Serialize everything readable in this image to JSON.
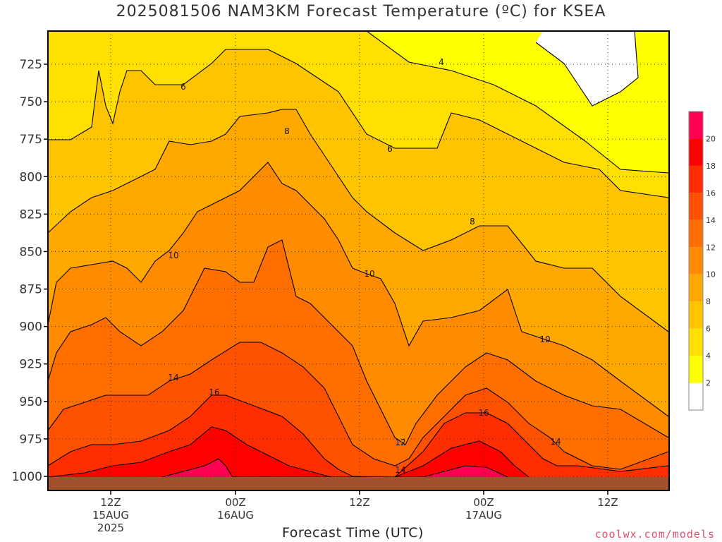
{
  "title": "2025081506 NAM3KM Forecast Temperature (ºC) for KSEA",
  "x_axis_label": "Forecast Time (UTC)",
  "credit": "coolwx.com/models",
  "chart_data": {
    "type": "area",
    "title": "2025081506 NAM3KM Forecast Temperature (ºC) for KSEA",
    "xlabel": "Forecast Time (UTC)",
    "ylabel": "",
    "y_ticks": [
      725,
      750,
      775,
      800,
      825,
      850,
      875,
      900,
      925,
      950,
      975,
      1000
    ],
    "y_axis_inverted": true,
    "x_ticks": [
      {
        "line1": "12Z",
        "line2": "15AUG",
        "line3": "2025"
      },
      {
        "line1": "00Z",
        "line2": "16AUG",
        "line3": ""
      },
      {
        "line1": "12Z",
        "line2": "",
        "line3": ""
      },
      {
        "line1": "00Z",
        "line2": "17AUG",
        "line3": ""
      },
      {
        "line1": "12Z",
        "line2": "",
        "line3": ""
      }
    ],
    "grid": true,
    "colorbar": {
      "levels": [
        2,
        4,
        6,
        8,
        10,
        12,
        14,
        16,
        18,
        20
      ],
      "colors": [
        "#ffffff",
        "#ffff00",
        "#ffe000",
        "#ffc400",
        "#ffa800",
        "#ff8c00",
        "#ff6f00",
        "#ff5200",
        "#ff2e00",
        "#ff0000",
        "#ff0050"
      ]
    },
    "contour_labels": [
      "4",
      "6",
      "6",
      "8",
      "8",
      "10",
      "10",
      "10",
      "12",
      "14",
      "14",
      "14",
      "16",
      "16"
    ],
    "isotherms": [
      {
        "value": 4,
        "p": [
          [
            68,
            44
          ],
          [
            520,
            44
          ],
          [
            580,
            88
          ],
          [
            640,
            100
          ],
          [
            700,
            120
          ],
          [
            760,
            150
          ],
          [
            830,
            200
          ],
          [
            880,
            240
          ],
          [
            948,
            245
          ]
        ]
      },
      {
        "value": 6,
        "p": [
          [
            68,
            198
          ],
          [
            100,
            198
          ],
          [
            130,
            180
          ],
          [
            140,
            100
          ],
          [
            150,
            150
          ],
          [
            160,
            175
          ],
          [
            170,
            130
          ],
          [
            180,
            100
          ],
          [
            200,
            100
          ],
          [
            220,
            120
          ],
          [
            260,
            120
          ],
          [
            300,
            90
          ],
          [
            320,
            70
          ],
          [
            350,
            70
          ],
          [
            380,
            70
          ],
          [
            420,
            90
          ],
          [
            450,
            110
          ],
          [
            480,
            130
          ],
          [
            520,
            190
          ],
          [
            560,
            210
          ],
          [
            600,
            210
          ],
          [
            620,
            210
          ],
          [
            640,
            160
          ],
          [
            680,
            170
          ],
          [
            740,
            200
          ],
          [
            800,
            230
          ],
          [
            850,
            240
          ],
          [
            880,
            270
          ],
          [
            948,
            280
          ]
        ]
      },
      {
        "value": 8,
        "p": [
          [
            68,
            330
          ],
          [
            100,
            300
          ],
          [
            130,
            280
          ],
          [
            160,
            270
          ],
          [
            200,
            250
          ],
          [
            220,
            240
          ],
          [
            240,
            200
          ],
          [
            270,
            205
          ],
          [
            300,
            200
          ],
          [
            320,
            190
          ],
          [
            340,
            165
          ],
          [
            380,
            160
          ],
          [
            400,
            155
          ],
          [
            420,
            155
          ],
          [
            440,
            190
          ],
          [
            460,
            220
          ],
          [
            480,
            250
          ],
          [
            500,
            280
          ],
          [
            520,
            300
          ],
          [
            560,
            330
          ],
          [
            600,
            355
          ],
          [
            640,
            340
          ],
          [
            680,
            320
          ],
          [
            720,
            320
          ],
          [
            760,
            370
          ],
          [
            800,
            380
          ],
          [
            840,
            380
          ],
          [
            880,
            420
          ],
          [
            948,
            470
          ]
        ]
      },
      {
        "value": 10,
        "p": [
          [
            68,
            460
          ],
          [
            80,
            400
          ],
          [
            100,
            380
          ],
          [
            130,
            375
          ],
          [
            160,
            370
          ],
          [
            180,
            380
          ],
          [
            200,
            400
          ],
          [
            220,
            370
          ],
          [
            240,
            355
          ],
          [
            260,
            330
          ],
          [
            280,
            300
          ],
          [
            300,
            290
          ],
          [
            320,
            280
          ],
          [
            340,
            270
          ],
          [
            360,
            250
          ],
          [
            380,
            230
          ],
          [
            400,
            260
          ],
          [
            420,
            270
          ],
          [
            440,
            290
          ],
          [
            460,
            310
          ],
          [
            480,
            340
          ],
          [
            500,
            380
          ],
          [
            520,
            388
          ],
          [
            540,
            395
          ],
          [
            560,
            430
          ],
          [
            580,
            490
          ],
          [
            600,
            455
          ],
          [
            640,
            450
          ],
          [
            680,
            440
          ],
          [
            720,
            410
          ],
          [
            740,
            470
          ],
          [
            770,
            480
          ],
          [
            800,
            490
          ],
          [
            840,
            510
          ],
          [
            880,
            540
          ],
          [
            948,
            590
          ]
        ]
      },
      {
        "value": 12,
        "p": [
          [
            68,
            540
          ],
          [
            80,
            500
          ],
          [
            100,
            470
          ],
          [
            130,
            460
          ],
          [
            150,
            450
          ],
          [
            170,
            470
          ],
          [
            200,
            490
          ],
          [
            230,
            470
          ],
          [
            260,
            440
          ],
          [
            290,
            380
          ],
          [
            320,
            385
          ],
          [
            340,
            400
          ],
          [
            360,
            400
          ],
          [
            380,
            350
          ],
          [
            400,
            340
          ],
          [
            410,
            380
          ],
          [
            420,
            420
          ],
          [
            440,
            430
          ],
          [
            460,
            450
          ],
          [
            480,
            470
          ],
          [
            500,
            490
          ],
          [
            520,
            540
          ],
          [
            540,
            580
          ],
          [
            560,
            620
          ],
          [
            575,
            630
          ],
          [
            590,
            600
          ],
          [
            620,
            560
          ],
          [
            660,
            520
          ],
          [
            690,
            500
          ],
          [
            720,
            510
          ],
          [
            760,
            540
          ],
          [
            800,
            560
          ],
          [
            840,
            575
          ],
          [
            880,
            580
          ],
          [
            948,
            620
          ]
        ]
      },
      {
        "value": 14,
        "p": [
          [
            68,
            610
          ],
          [
            90,
            580
          ],
          [
            120,
            570
          ],
          [
            150,
            560
          ],
          [
            180,
            560
          ],
          [
            210,
            560
          ],
          [
            240,
            540
          ],
          [
            270,
            530
          ],
          [
            300,
            510
          ],
          [
            340,
            485
          ],
          [
            370,
            485
          ],
          [
            400,
            500
          ],
          [
            430,
            520
          ],
          [
            460,
            550
          ],
          [
            480,
            590
          ],
          [
            500,
            630
          ],
          [
            530,
            650
          ],
          [
            560,
            660
          ],
          [
            580,
            650
          ],
          [
            600,
            620
          ],
          [
            630,
            590
          ],
          [
            660,
            560
          ],
          [
            690,
            550
          ],
          [
            720,
            570
          ],
          [
            750,
            600
          ],
          [
            780,
            620
          ],
          [
            800,
            640
          ],
          [
            840,
            660
          ],
          [
            880,
            665
          ],
          [
            948,
            640
          ]
        ]
      },
      {
        "value": 16,
        "p": [
          [
            68,
            660
          ],
          [
            100,
            640
          ],
          [
            130,
            630
          ],
          [
            160,
            630
          ],
          [
            200,
            625
          ],
          [
            240,
            610
          ],
          [
            270,
            590
          ],
          [
            300,
            560
          ],
          [
            320,
            560
          ],
          [
            360,
            575
          ],
          [
            400,
            590
          ],
          [
            430,
            615
          ],
          [
            460,
            650
          ],
          [
            480,
            665
          ],
          [
            500,
            675
          ],
          [
            560,
            676
          ],
          [
            600,
            640
          ],
          [
            630,
            600
          ],
          [
            660,
            585
          ],
          [
            690,
            585
          ],
          [
            720,
            600
          ],
          [
            750,
            630
          ],
          [
            770,
            650
          ],
          [
            790,
            660
          ],
          [
            820,
            660
          ],
          [
            880,
            668
          ],
          [
            948,
            660
          ]
        ]
      },
      {
        "value": 18,
        "p": [
          [
            68,
            676
          ],
          [
            120,
            670
          ],
          [
            160,
            660
          ],
          [
            200,
            655
          ],
          [
            240,
            640
          ],
          [
            270,
            630
          ],
          [
            300,
            605
          ],
          [
            320,
            610
          ],
          [
            350,
            630
          ],
          [
            380,
            645
          ],
          [
            410,
            660
          ],
          [
            440,
            668
          ],
          [
            470,
            676
          ],
          [
            560,
            676
          ],
          [
            600,
            660
          ],
          [
            640,
            635
          ],
          [
            680,
            625
          ],
          [
            710,
            640
          ],
          [
            730,
            660
          ],
          [
            750,
            676
          ]
        ]
      },
      {
        "value": 20,
        "p": [
          [
            230,
            676
          ],
          [
            260,
            668
          ],
          [
            290,
            660
          ],
          [
            310,
            650
          ],
          [
            320,
            660
          ],
          [
            330,
            676
          ],
          [
            600,
            676
          ],
          [
            630,
            668
          ],
          [
            660,
            660
          ],
          [
            690,
            662
          ],
          [
            720,
            676
          ]
        ]
      }
    ]
  }
}
